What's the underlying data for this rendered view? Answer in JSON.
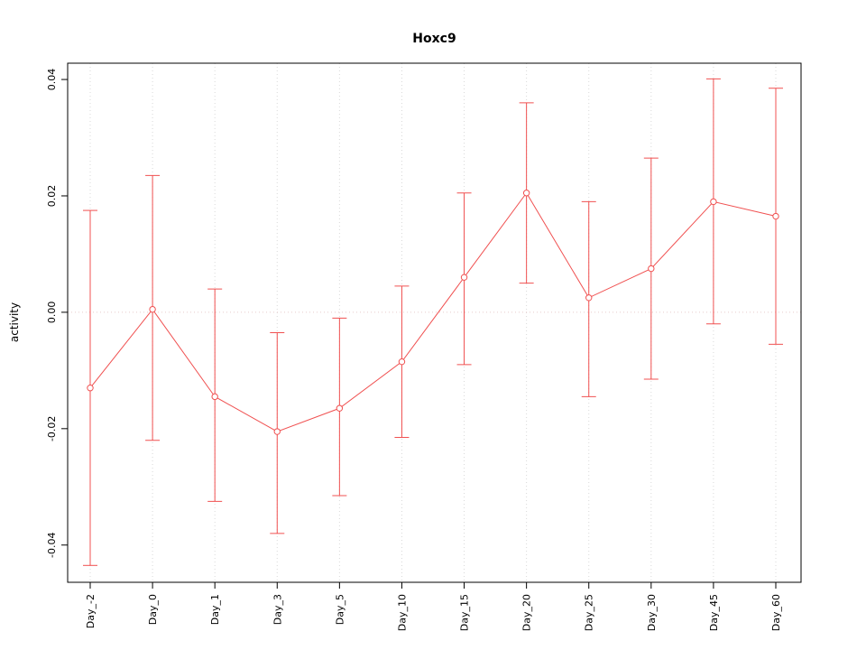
{
  "chart_data": {
    "type": "line",
    "title": "Hoxc9",
    "xlabel": "",
    "ylabel": "activity",
    "legend": "none",
    "categories": [
      "Day_-2",
      "Day_0",
      "Day_1",
      "Day_3",
      "Day_5",
      "Day_10",
      "Day_15",
      "Day_20",
      "Day_25",
      "Day_30",
      "Day_45",
      "Day_60"
    ],
    "series": [
      {
        "name": "activity",
        "marker": "open-circle",
        "values": [
          -0.013,
          0.0005,
          -0.0145,
          -0.0205,
          -0.0165,
          -0.0085,
          0.006,
          0.0205,
          0.0025,
          0.0075,
          0.019,
          0.0165
        ],
        "error_low": [
          -0.0435,
          -0.022,
          -0.0325,
          -0.038,
          -0.0315,
          -0.0215,
          -0.009,
          0.005,
          -0.0145,
          -0.0115,
          -0.002,
          -0.0055
        ],
        "error_high": [
          0.0175,
          0.0235,
          0.004,
          -0.0035,
          -0.001,
          0.0045,
          0.0205,
          0.036,
          0.019,
          0.0265,
          0.0401,
          0.0385
        ]
      }
    ],
    "ylim": [
      -0.0464,
      0.0428
    ],
    "yticks": [
      -0.04,
      -0.02,
      0,
      0.02,
      0.04
    ],
    "ytick_labels": [
      "-0.04",
      "-0.02",
      "0.00",
      "0.02",
      "0.04"
    ],
    "grid": {
      "vertical_dotted": true,
      "zero_line_dotted": true
    },
    "colors": {
      "series": "#f05050",
      "grid": "#d9d9d9",
      "zero_line": "#e8caca",
      "axis": "#000000",
      "background": "#ffffff"
    }
  }
}
